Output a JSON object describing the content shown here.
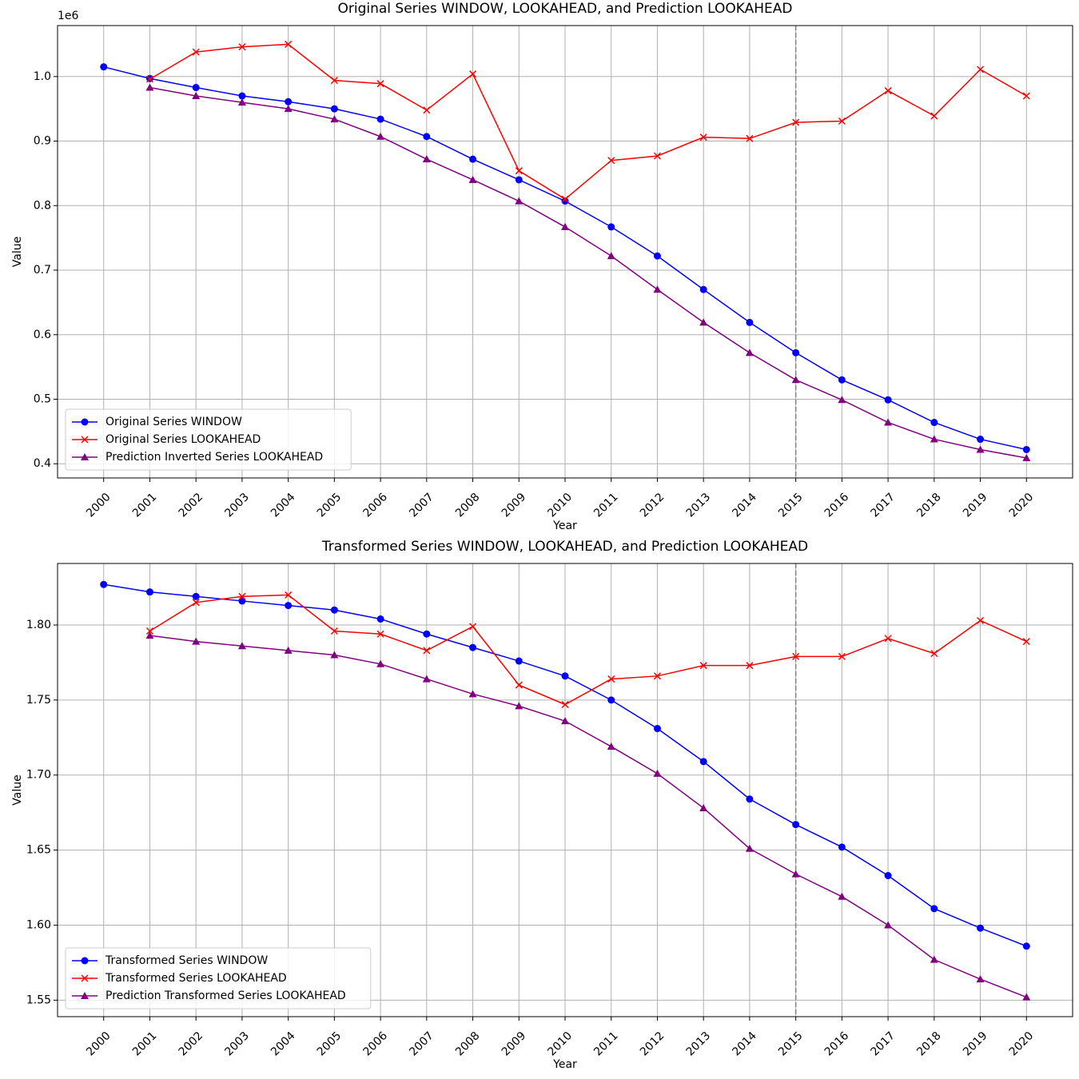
{
  "chart_data": [
    {
      "type": "line",
      "title": "Original Series WINDOW, LOOKAHEAD, and Prediction LOOKAHEAD",
      "xlabel": "Year",
      "ylabel": "Value",
      "y_offset_label": "1e6",
      "x": [
        2000,
        2001,
        2002,
        2003,
        2004,
        2005,
        2006,
        2007,
        2008,
        2009,
        2010,
        2011,
        2012,
        2013,
        2014,
        2015,
        2016,
        2017,
        2018,
        2019,
        2020
      ],
      "xlim": [
        1999,
        2021
      ],
      "xticks": [
        2000,
        2001,
        2002,
        2003,
        2004,
        2005,
        2006,
        2007,
        2008,
        2009,
        2010,
        2011,
        2012,
        2013,
        2014,
        2015,
        2016,
        2017,
        2018,
        2019,
        2020
      ],
      "ylim": [
        0.378,
        1.079
      ],
      "yticks": [
        0.4,
        0.5,
        0.6,
        0.7,
        0.8,
        0.9,
        {
          "value": 1,
          "label": "1.0"
        }
      ],
      "grid": true,
      "legend": "lower left",
      "vline": 2015,
      "series": [
        {
          "name": "Original Series WINDOW",
          "color": "#0000ff",
          "marker": "circle",
          "values": [
            1.015,
            0.997,
            0.983,
            0.97,
            0.961,
            0.95,
            0.934,
            0.907,
            0.872,
            0.84,
            0.807,
            0.767,
            0.722,
            0.67,
            0.619,
            0.572,
            0.53,
            0.499,
            0.464,
            0.438,
            0.422
          ]
        },
        {
          "name": "Original Series LOOKAHEAD",
          "color": "#ff0000",
          "marker": "x",
          "values": [
            null,
            0.996,
            1.038,
            1.046,
            1.05,
            0.994,
            0.989,
            0.948,
            1.004,
            0.854,
            0.81,
            0.87,
            0.877,
            0.906,
            0.904,
            0.929,
            0.931,
            0.978,
            0.939,
            1.011,
            0.97
          ]
        },
        {
          "name": "Prediction Inverted Series LOOKAHEAD",
          "color": "#800080",
          "marker": "triangle",
          "values": [
            null,
            0.983,
            0.97,
            0.96,
            0.95,
            0.934,
            0.907,
            0.872,
            0.84,
            0.807,
            0.767,
            0.722,
            0.67,
            0.619,
            0.572,
            0.53,
            0.499,
            0.464,
            0.438,
            0.422,
            0.409
          ]
        }
      ]
    },
    {
      "type": "line",
      "title": "Transformed Series WINDOW, LOOKAHEAD, and Prediction LOOKAHEAD",
      "xlabel": "Year",
      "ylabel": "Value",
      "x": [
        2000,
        2001,
        2002,
        2003,
        2004,
        2005,
        2006,
        2007,
        2008,
        2009,
        2010,
        2011,
        2012,
        2013,
        2014,
        2015,
        2016,
        2017,
        2018,
        2019,
        2020
      ],
      "xlim": [
        1999,
        2021
      ],
      "xticks": [
        2000,
        2001,
        2002,
        2003,
        2004,
        2005,
        2006,
        2007,
        2008,
        2009,
        2010,
        2011,
        2012,
        2013,
        2014,
        2015,
        2016,
        2017,
        2018,
        2019,
        2020
      ],
      "ylim": [
        1.539,
        1.841
      ],
      "yticks": [
        1.55,
        {
          "value": 1.6,
          "label": "1.60"
        },
        1.65,
        {
          "value": 1.7,
          "label": "1.70"
        },
        1.75,
        {
          "value": 1.8,
          "label": "1.80"
        }
      ],
      "grid": true,
      "legend": "lower left",
      "vline": 2015,
      "series": [
        {
          "name": "Transformed Series WINDOW",
          "color": "#0000ff",
          "marker": "circle",
          "values": [
            1.827,
            1.822,
            1.819,
            1.816,
            1.813,
            1.81,
            1.804,
            1.794,
            1.785,
            1.776,
            1.766,
            1.75,
            1.731,
            1.709,
            1.684,
            1.667,
            1.652,
            1.633,
            1.611,
            1.598,
            1.586
          ]
        },
        {
          "name": "Transformed Series LOOKAHEAD",
          "color": "#ff0000",
          "marker": "x",
          "values": [
            null,
            1.796,
            1.815,
            1.819,
            1.82,
            1.796,
            1.794,
            1.783,
            1.799,
            1.76,
            1.747,
            1.764,
            1.766,
            1.773,
            1.773,
            1.779,
            1.779,
            1.791,
            1.781,
            1.803,
            1.789
          ]
        },
        {
          "name": "Prediction Transformed Series LOOKAHEAD",
          "color": "#800080",
          "marker": "triangle",
          "values": [
            null,
            1.793,
            1.789,
            1.786,
            1.783,
            1.78,
            1.774,
            1.764,
            1.754,
            1.746,
            1.736,
            1.719,
            1.701,
            1.678,
            1.651,
            1.634,
            1.619,
            1.6,
            1.577,
            1.564,
            1.552
          ]
        }
      ]
    }
  ]
}
